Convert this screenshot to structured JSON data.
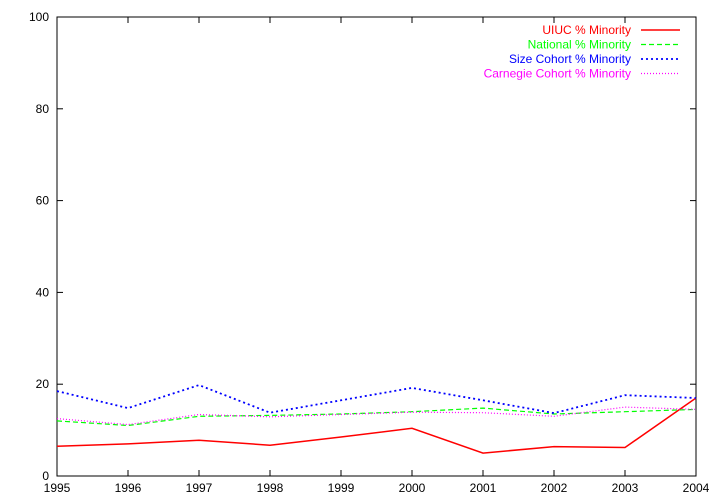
{
  "chart_data": {
    "type": "line",
    "title": "",
    "xlabel": "",
    "ylabel": "",
    "x": [
      1995,
      1996,
      1997,
      1998,
      1999,
      2000,
      2001,
      2002,
      2003,
      2004
    ],
    "xticks": [
      "1995",
      "1996",
      "1997",
      "1998",
      "1999",
      "2000",
      "2001",
      "2002",
      "2003",
      "2004"
    ],
    "yticks": [
      "0",
      "20",
      "40",
      "60",
      "80",
      "100"
    ],
    "xlim": [
      1995,
      2004
    ],
    "ylim": [
      0,
      100
    ],
    "grid": false,
    "legend_position": "top-right",
    "series": [
      {
        "name": "UIUC % Minority",
        "color": "#ff0000",
        "dash": "solid",
        "values": [
          6.5,
          7.0,
          7.8,
          6.7,
          8.5,
          10.4,
          5.0,
          6.4,
          6.2,
          17.0
        ]
      },
      {
        "name": "National % Minority",
        "color": "#00ff00",
        "dash": "dashed",
        "values": [
          12.0,
          11.0,
          13.0,
          13.2,
          13.5,
          14.0,
          14.8,
          13.5,
          14.0,
          14.5
        ]
      },
      {
        "name": "Size Cohort % Minority",
        "color": "#0000ff",
        "dash": "dotted",
        "values": [
          18.5,
          14.8,
          19.8,
          13.8,
          16.5,
          19.2,
          16.5,
          13.7,
          17.6,
          17.0
        ]
      },
      {
        "name": "Carnegie Cohort % Minority",
        "color": "#ff00ff",
        "dash": "fine-dotted",
        "values": [
          12.5,
          11.2,
          13.4,
          12.9,
          13.4,
          13.9,
          13.8,
          13.0,
          15.0,
          14.5
        ]
      }
    ]
  }
}
